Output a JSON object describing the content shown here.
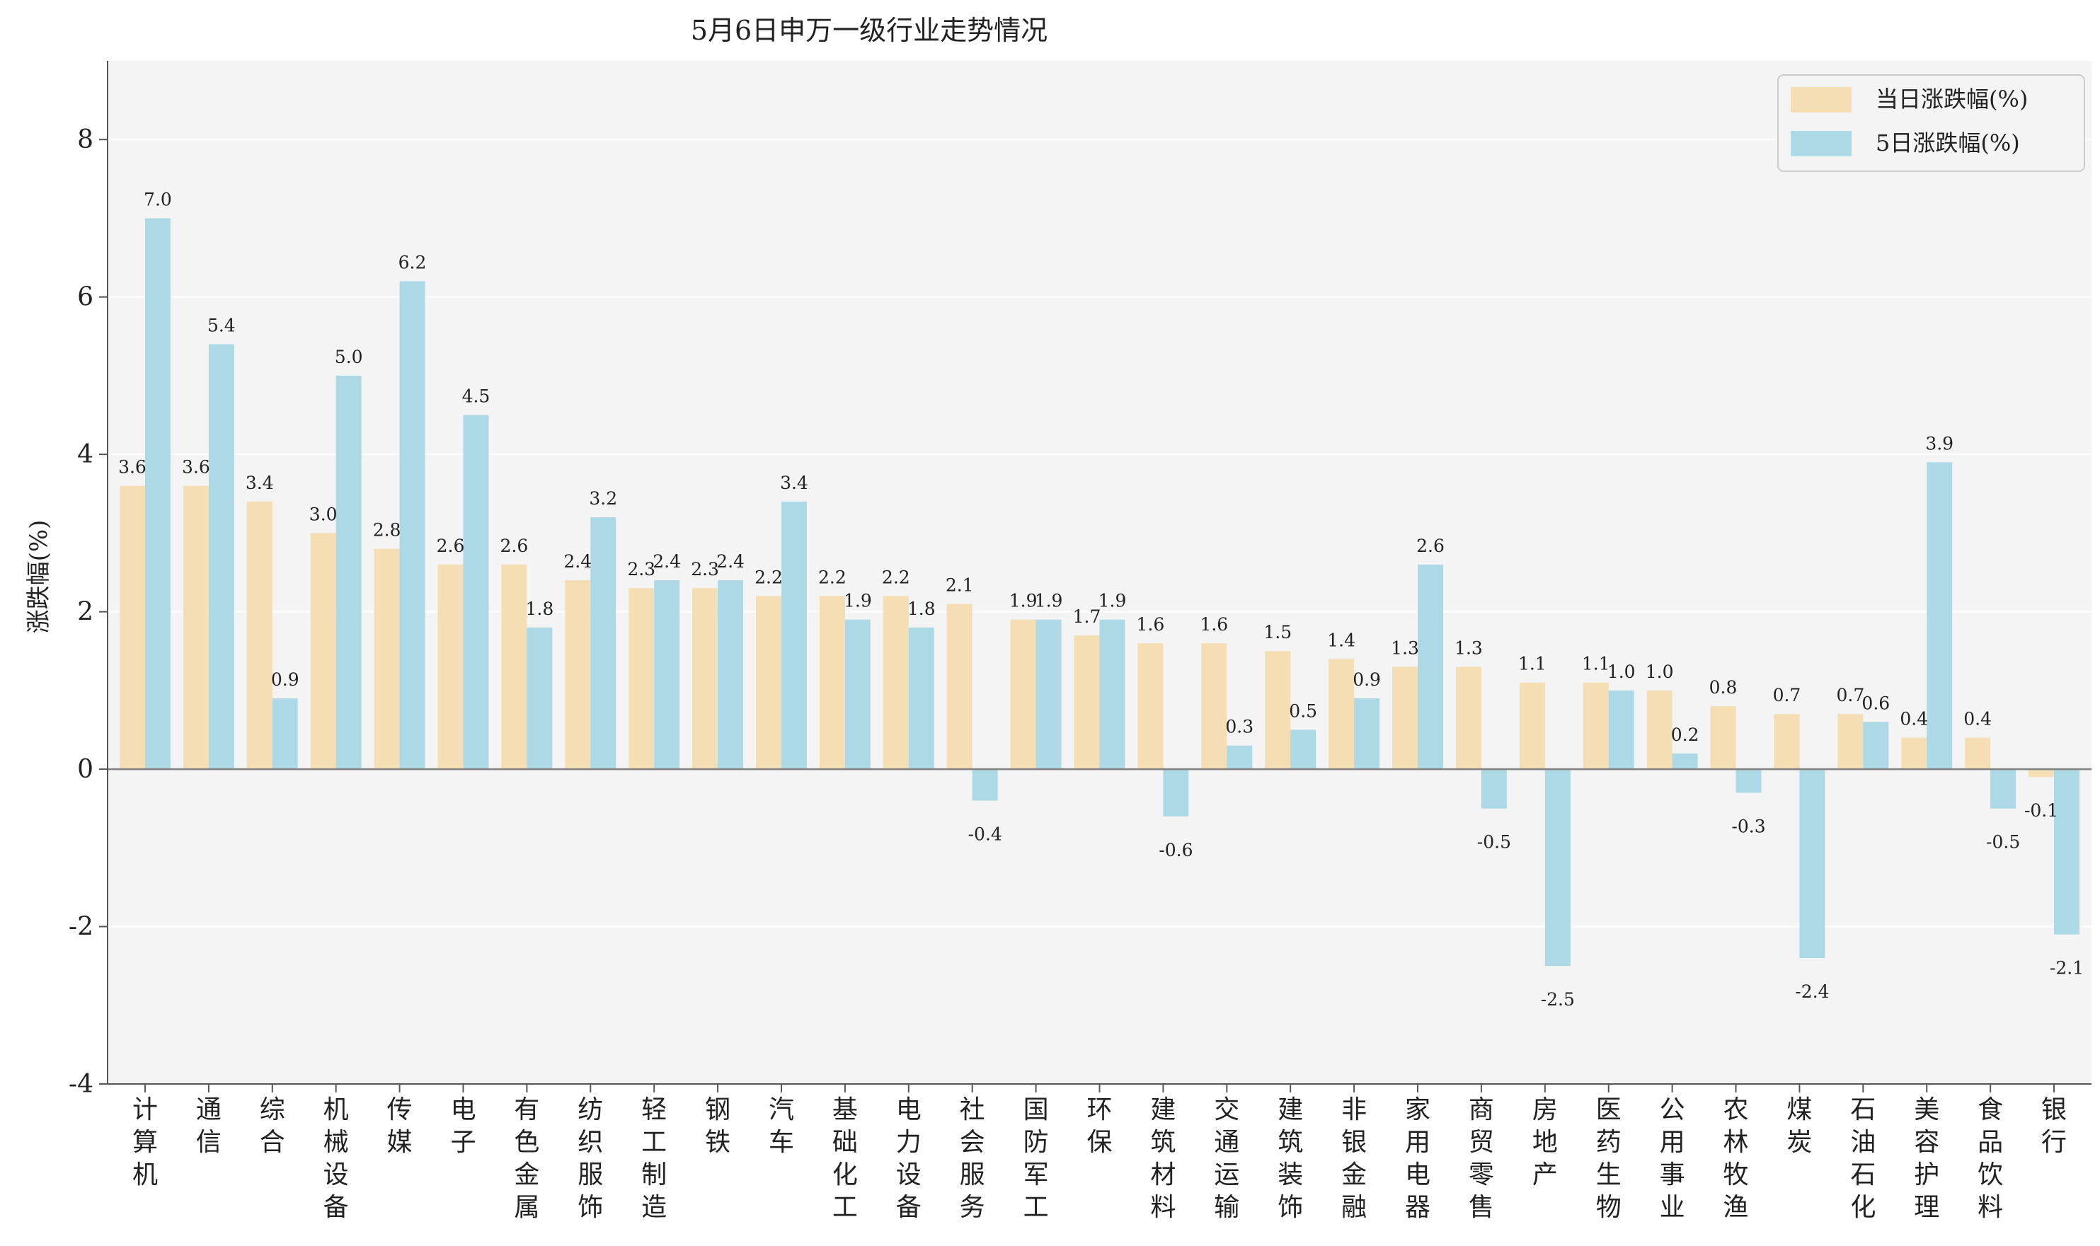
{
  "chart_data": {
    "type": "bar",
    "title": "5月6日申万一级行业走势情况",
    "xlabel": "",
    "ylabel": "涨跌幅(%)",
    "ylim": [
      -4,
      9
    ],
    "yticks": [
      -4,
      -2,
      0,
      2,
      4,
      6,
      8
    ],
    "ytick_labels": [
      "-4",
      "-2",
      "0",
      "2",
      "4",
      "6",
      "8"
    ],
    "grid": true,
    "legend_position": "top-right",
    "categories": [
      "计算机",
      "通信",
      "综合",
      "机械设备",
      "传媒",
      "电子",
      "有色金属",
      "纺织服饰",
      "轻工制造",
      "钢铁",
      "汽车",
      "基础化工",
      "电力设备",
      "社会服务",
      "国防军工",
      "环保",
      "建筑材料",
      "交通运输",
      "建筑装饰",
      "非银金融",
      "家用电器",
      "商贸零售",
      "房地产",
      "医药生物",
      "公用事业",
      "农林牧渔",
      "煤炭",
      "石油石化",
      "美容护理",
      "食品饮料",
      "银行"
    ],
    "series": [
      {
        "name": "当日涨跌幅(%)",
        "color": "#F5DEB3",
        "values": [
          3.6,
          3.6,
          3.4,
          3.0,
          2.8,
          2.6,
          2.6,
          2.4,
          2.3,
          2.3,
          2.2,
          2.2,
          2.2,
          2.1,
          1.9,
          1.7,
          1.6,
          1.6,
          1.5,
          1.4,
          1.3,
          1.3,
          1.1,
          1.1,
          1.0,
          0.8,
          0.7,
          0.7,
          0.4,
          0.4,
          -0.1
        ],
        "labels": [
          "3.6",
          "3.6",
          "3.4",
          "3.0",
          "2.8",
          "2.6",
          "2.6",
          "2.4",
          "2.3",
          "2.3",
          "2.2",
          "2.2",
          "2.2",
          "2.1",
          "1.9",
          "1.7",
          "1.6",
          "1.6",
          "1.5",
          "1.4",
          "1.3",
          "1.3",
          "1.1",
          "1.1",
          "1.0",
          "0.8",
          "0.7",
          "0.7",
          "0.4",
          "0.4",
          "-0.1"
        ]
      },
      {
        "name": "5日涨跌幅(%)",
        "color": "#ADD8E6",
        "values": [
          7.0,
          5.4,
          0.9,
          5.0,
          6.2,
          4.5,
          1.8,
          3.2,
          2.4,
          2.4,
          3.4,
          1.9,
          1.8,
          -0.4,
          1.9,
          1.9,
          -0.6,
          0.3,
          0.5,
          0.9,
          2.6,
          -0.5,
          -2.5,
          1.0,
          0.2,
          -0.3,
          -2.4,
          0.6,
          3.9,
          -0.5,
          -2.1
        ],
        "labels": [
          "7.0",
          "5.4",
          "0.9",
          "5.0",
          "6.2",
          "4.5",
          "1.8",
          "3.2",
          "2.4",
          "2.4",
          "3.4",
          "1.9",
          "1.8",
          "-0.4",
          "1.9",
          "1.9",
          "-0.6",
          "0.3",
          "0.5",
          "0.9",
          "2.6",
          "-0.5",
          "-2.5",
          "1.0",
          "0.2",
          "-0.3",
          "-2.4",
          "0.6",
          "3.9",
          "-0.5",
          "-2.1"
        ]
      }
    ],
    "colors": {
      "plot_background": "#F4F4F4",
      "grid": "#FFFFFF",
      "zero_line": "#808080",
      "axis": "#555555"
    }
  }
}
